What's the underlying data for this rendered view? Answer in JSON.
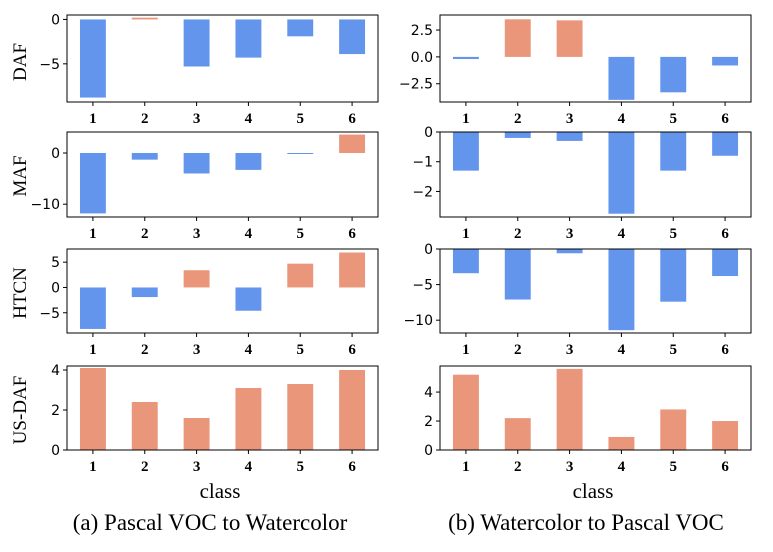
{
  "colors": {
    "positive": "#E9967A",
    "negative": "#6495ED"
  },
  "x_label": "class",
  "captions": [
    "(a) Pascal VOC to Watercolor",
    "(b)  Watercolor to Pascal VOC"
  ],
  "chart_data": [
    {
      "type": "bar",
      "panel": "a",
      "ylabel": "DAF",
      "categories": [
        "1",
        "2",
        "3",
        "4",
        "5",
        "6"
      ],
      "values": [
        -8.8,
        0.2,
        -5.3,
        -4.3,
        -1.9,
        -3.9
      ],
      "ylim": [
        -9.3,
        0.5
      ],
      "yticks": [
        0,
        -5
      ],
      "ytick_labels": [
        "0",
        "−5"
      ]
    },
    {
      "type": "bar",
      "panel": "b",
      "ylabel": "",
      "categories": [
        "1",
        "2",
        "3",
        "4",
        "5",
        "6"
      ],
      "values": [
        -0.2,
        3.5,
        3.4,
        -4.0,
        -3.3,
        -0.8
      ],
      "ylim": [
        -4.2,
        3.9
      ],
      "yticks": [
        2.5,
        0.0,
        -2.5
      ],
      "ytick_labels": [
        "2.5",
        "0.0",
        "−2.5"
      ]
    },
    {
      "type": "bar",
      "panel": "a",
      "ylabel": "MAF",
      "categories": [
        "1",
        "2",
        "3",
        "4",
        "5",
        "6"
      ],
      "values": [
        -11.8,
        -1.3,
        -4.0,
        -3.3,
        -0.2,
        3.6
      ],
      "ylim": [
        -12.5,
        4.1
      ],
      "yticks": [
        0,
        -10
      ],
      "ytick_labels": [
        "0",
        "−10"
      ]
    },
    {
      "type": "bar",
      "panel": "b",
      "ylabel": "",
      "categories": [
        "1",
        "2",
        "3",
        "4",
        "5",
        "6"
      ],
      "values": [
        -1.3,
        -0.2,
        -0.3,
        -2.75,
        -1.3,
        -0.8
      ],
      "ylim": [
        -2.86,
        0.0
      ],
      "yticks": [
        0,
        -1,
        -2
      ],
      "ytick_labels": [
        "0",
        "−1",
        "−2"
      ]
    },
    {
      "type": "bar",
      "panel": "a",
      "ylabel": "HTCN",
      "categories": [
        "1",
        "2",
        "3",
        "4",
        "5",
        "6"
      ],
      "values": [
        -8.2,
        -1.9,
        3.4,
        -4.6,
        4.7,
        6.9
      ],
      "ylim": [
        -9.0,
        7.6
      ],
      "yticks": [
        5,
        0,
        -5
      ],
      "ytick_labels": [
        "5",
        "0",
        "−5"
      ]
    },
    {
      "type": "bar",
      "panel": "b",
      "ylabel": "",
      "categories": [
        "1",
        "2",
        "3",
        "4",
        "5",
        "6"
      ],
      "values": [
        -3.4,
        -7.1,
        -0.6,
        -11.4,
        -7.4,
        -3.8
      ],
      "ylim": [
        -11.8,
        0.0
      ],
      "yticks": [
        0,
        -5,
        -10
      ],
      "ytick_labels": [
        "0",
        "−5",
        "−10"
      ]
    },
    {
      "type": "bar",
      "panel": "a",
      "ylabel": "US-DAF",
      "categories": [
        "1",
        "2",
        "3",
        "4",
        "5",
        "6"
      ],
      "values": [
        4.1,
        2.4,
        1.6,
        3.1,
        3.3,
        4.0
      ],
      "ylim": [
        0,
        4.2
      ],
      "yticks": [
        4,
        2,
        0
      ],
      "ytick_labels": [
        "4",
        "2",
        "0"
      ]
    },
    {
      "type": "bar",
      "panel": "b",
      "ylabel": "",
      "categories": [
        "1",
        "2",
        "3",
        "4",
        "5",
        "6"
      ],
      "values": [
        5.2,
        2.2,
        5.6,
        0.9,
        2.8,
        2.0
      ],
      "ylim": [
        0,
        5.8
      ],
      "yticks": [
        4,
        2,
        0
      ],
      "ytick_labels": [
        "4",
        "2",
        "0"
      ]
    }
  ]
}
